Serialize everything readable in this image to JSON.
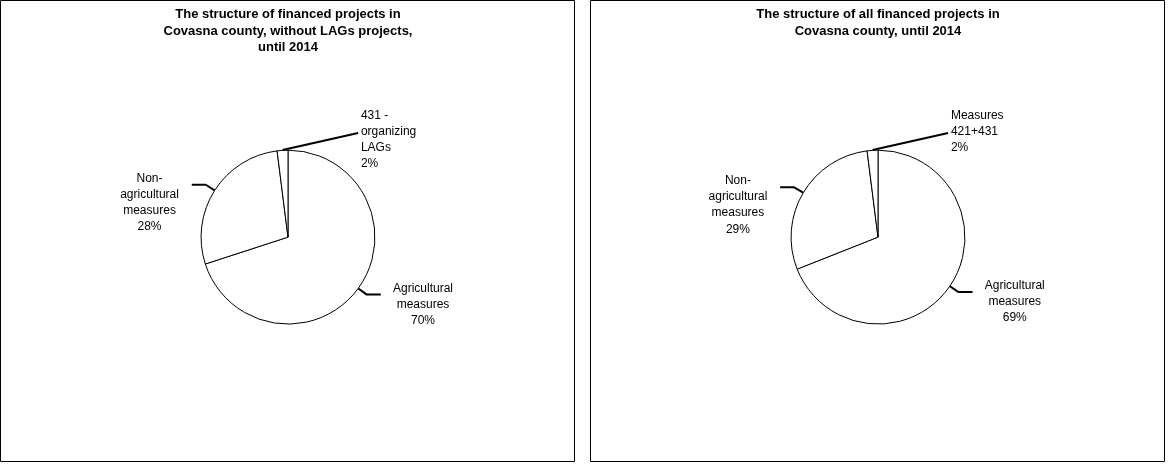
{
  "chart_data": [
    {
      "type": "pie",
      "title": "The structure of financed projects in Covasna county, without LAGs projects, until 2014",
      "categories": [
        "Agricultural measures",
        "Non-agricultural measures",
        "431 - organizing LAGs"
      ],
      "values": [
        70,
        28,
        2
      ],
      "value_labels": [
        "70%",
        "28%",
        "2%"
      ],
      "colors": [
        "#ffffff",
        "#ffffff",
        "#ffffff"
      ]
    },
    {
      "type": "pie",
      "title": "The structure of all financed projects in Covasna county, until 2014",
      "categories": [
        "Agricultural measures",
        "Non-agricultural measures",
        "Measures 421+431"
      ],
      "values": [
        69,
        29,
        2
      ],
      "value_labels": [
        "69%",
        "29%",
        "2%"
      ],
      "colors": [
        "#ffffff",
        "#ffffff",
        "#ffffff"
      ]
    }
  ]
}
